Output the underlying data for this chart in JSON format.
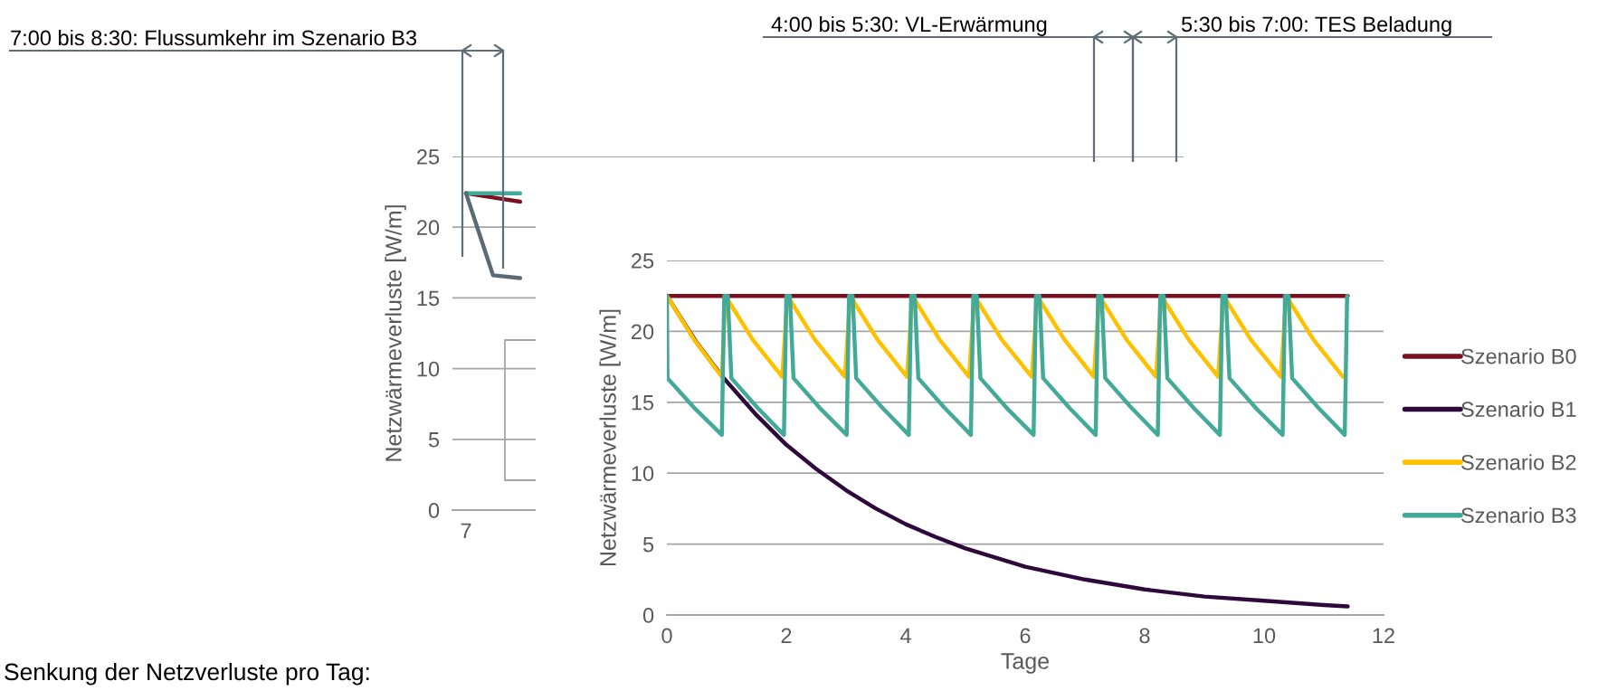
{
  "chart_data": [
    {
      "type": "line",
      "xlim": [
        0,
        12
      ],
      "xticks": [
        0,
        2,
        4,
        6,
        8,
        10,
        12
      ],
      "ylim": [
        0,
        25
      ],
      "yticks": [
        0,
        5,
        10,
        15,
        20,
        25
      ],
      "xlabel": "Tage",
      "ylabel": "Netzwärmeverluste [W/m]",
      "grid": "y",
      "legend": "right",
      "series": [
        {
          "name": "Szenario B0",
          "color": "#7b1020",
          "x": [
            0,
            11.4
          ],
          "values": [
            22.5,
            22.5
          ]
        },
        {
          "name": "Szenario B1",
          "color": "#2e0a3c",
          "x": [
            0,
            0.5,
            0.93,
            1.5,
            2,
            2.5,
            3,
            3.5,
            4,
            4.5,
            5,
            6,
            7,
            8,
            9,
            10,
            11,
            11.4
          ],
          "values": [
            22.5,
            19.2,
            16.8,
            14.1,
            12.0,
            10.3,
            8.8,
            7.5,
            6.4,
            5.5,
            4.7,
            3.4,
            2.5,
            1.8,
            1.3,
            1.0,
            0.7,
            0.6
          ]
        },
        {
          "name": "Szenario B2",
          "color": "#ffc000",
          "x": [
            0,
            0.46,
            0.92,
            0.98,
            1.44,
            1.93,
            2.02,
            2.48,
            2.98,
            3.07,
            3.53,
            4.02,
            4.11,
            4.57,
            5.06,
            5.15,
            5.61,
            6.11,
            6.2,
            6.66,
            7.15,
            7.24,
            7.7,
            8.19,
            8.28,
            8.74,
            9.23,
            9.32,
            9.78,
            10.28,
            10.37,
            10.83,
            11.32
          ],
          "values": [
            22.5,
            19.4,
            16.8,
            22.5,
            19.4,
            16.8,
            22.5,
            19.4,
            16.8,
            22.5,
            19.4,
            16.8,
            22.5,
            19.4,
            16.8,
            22.5,
            19.4,
            16.8,
            22.5,
            19.4,
            16.8,
            22.5,
            19.4,
            16.8,
            22.5,
            19.4,
            16.8,
            22.5,
            19.4,
            16.8,
            22.5,
            19.4,
            16.8
          ]
        },
        {
          "name": "Szenario B3",
          "color": "#43aa98",
          "x": [
            0,
            0.01,
            0.46,
            0.92,
            0.96,
            1.02,
            1.08,
            1.52,
            1.96,
            2.0,
            2.06,
            2.12,
            2.56,
            3.01,
            3.05,
            3.11,
            3.17,
            3.61,
            4.05,
            4.09,
            4.15,
            4.21,
            4.65,
            5.09,
            5.13,
            5.19,
            5.25,
            5.69,
            6.14,
            6.18,
            6.24,
            6.3,
            6.74,
            7.18,
            7.22,
            7.28,
            7.34,
            7.78,
            8.22,
            8.26,
            8.32,
            8.38,
            8.82,
            9.26,
            9.3,
            9.36,
            9.42,
            9.86,
            10.31,
            10.35,
            10.41,
            10.47,
            10.91,
            11.35,
            11.39
          ],
          "values": [
            22.5,
            16.7,
            14.6,
            12.7,
            22.5,
            22.5,
            16.7,
            14.6,
            12.7,
            22.5,
            22.5,
            16.7,
            14.6,
            12.7,
            22.5,
            22.5,
            16.7,
            14.6,
            12.7,
            22.5,
            22.5,
            16.7,
            14.6,
            12.7,
            22.5,
            22.5,
            16.7,
            14.6,
            12.7,
            22.5,
            22.5,
            16.7,
            14.6,
            12.7,
            22.5,
            22.5,
            16.7,
            14.6,
            12.7,
            22.5,
            22.5,
            16.7,
            14.6,
            12.7,
            22.5,
            22.5,
            16.7,
            14.6,
            12.7,
            22.5,
            22.5,
            16.7,
            14.6,
            12.7,
            22.5
          ]
        }
      ],
      "annotations": [
        "Senkung der Netzverluste pro Tag:"
      ]
    },
    {
      "type": "line",
      "categories": [
        "7",
        null,
        null,
        null,
        null,
        null,
        null,
        null,
        null,
        null,
        null,
        null,
        null,
        null,
        null,
        null,
        null,
        null,
        null,
        null,
        null,
        null,
        null,
        null,
        null,
        null,
        null
      ],
      "ylim": [
        0,
        25
      ],
      "yticks": [
        0,
        5,
        10,
        15,
        20,
        25
      ],
      "ylabel": "Netzwärmeverluste [W/m]",
      "grid": "y",
      "series": [
        {
          "color": "#7b1020",
          "values": [
            22.4,
            22.1,
            21.8,
            null,
            null,
            null,
            null,
            null,
            null,
            null,
            null,
            null,
            null,
            null,
            null,
            null,
            null,
            null,
            null,
            null,
            null,
            null,
            null,
            null,
            null,
            null,
            null
          ]
        },
        {
          "color": "#43aa98",
          "values": [
            22.4,
            22.4,
            22.4,
            null,
            null,
            null,
            null,
            null,
            null,
            null,
            null,
            null,
            null,
            null,
            null,
            null,
            null,
            null,
            null,
            null,
            null,
            null,
            null,
            null,
            null,
            null,
            null
          ]
        },
        {
          "color": "#5a6a75",
          "values": [
            22.4,
            16.6,
            16.4,
            null,
            null,
            null,
            null,
            null,
            null,
            null,
            null,
            null,
            null,
            null,
            null,
            null,
            null,
            null,
            null,
            null,
            null,
            null,
            null,
            null,
            null,
            null,
            null
          ]
        }
      ],
      "annotations": [
        "7:00 bis 8:30: Flussumkehr im Szenario B3",
        "4:00 bis 5:30: VL-Erwärmung",
        "5:30 bis 7:00: TES Beladung"
      ]
    }
  ]
}
